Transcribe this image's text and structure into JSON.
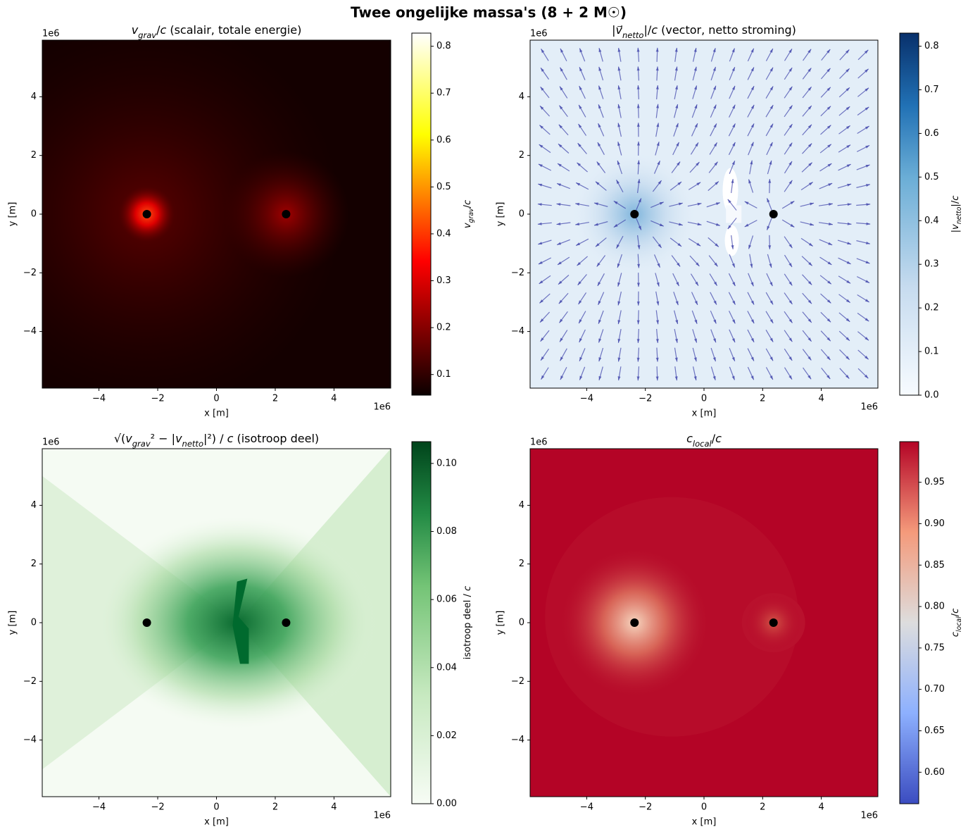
{
  "title": "Twee ongelijke massa's (8 + 2 M☉)",
  "chart_data": [
    {
      "type": "heatmap",
      "colormap": "hot",
      "title": [
        {
          "t": "v",
          "s": "i"
        },
        {
          "t": "grav",
          "s": "sub"
        },
        {
          "t": "/"
        },
        {
          "t": "c",
          "s": "i"
        },
        {
          "t": " (scalair, totale energie)"
        }
      ],
      "xlabel": "x [m]",
      "ylabel": "y [m]",
      "x_offset": "1e6",
      "y_offset": "1e6",
      "xlim": [
        -5.93,
        5.93
      ],
      "ylim": [
        -5.93,
        5.93
      ],
      "xticks": [
        {
          "value": -4,
          "label": "−4"
        },
        {
          "value": -2,
          "label": "−2"
        },
        0,
        2,
        4
      ],
      "yticks": [
        {
          "value": -4,
          "label": "−4"
        },
        {
          "value": -2,
          "label": "−2"
        },
        0,
        2,
        4
      ],
      "points": {
        "x": [
          -2.37,
          2.37
        ],
        "y": [
          0,
          0
        ]
      },
      "colorbar": {
        "label": [
          {
            "t": "v",
            "s": "i"
          },
          {
            "t": "grav",
            "s": "sub"
          },
          {
            "t": "/"
          },
          {
            "t": "c",
            "s": "i"
          }
        ],
        "lim": [
          0.056,
          0.828
        ],
        "ticks": [
          0.1,
          0.2,
          0.3,
          0.4,
          0.5,
          0.6,
          0.7,
          0.8
        ]
      }
    },
    {
      "type": "quiver",
      "colormap": "blues",
      "title": [
        {
          "t": "|"
        },
        {
          "t": "v⃗",
          "s": "i"
        },
        {
          "t": "netto",
          "s": "sub"
        },
        {
          "t": "|/"
        },
        {
          "t": "c",
          "s": "i"
        },
        {
          "t": " (vector, netto stroming)"
        }
      ],
      "xlabel": "x [m]",
      "ylabel": "y [m]",
      "x_offset": "1e6",
      "y_offset": "1e6",
      "xlim": [
        -5.93,
        5.93
      ],
      "ylim": [
        -5.93,
        5.93
      ],
      "xticks": [
        {
          "value": -4,
          "label": "−4"
        },
        {
          "value": -2,
          "label": "−2"
        },
        0,
        2,
        4
      ],
      "yticks": [
        {
          "value": -4,
          "label": "−4"
        },
        {
          "value": -2,
          "label": "−2"
        },
        0,
        2,
        4
      ],
      "points": {
        "x": [
          -2.37,
          2.37
        ],
        "y": [
          0,
          0
        ]
      },
      "colorbar": {
        "label": [
          {
            "t": "|"
          },
          {
            "t": "v",
            "s": "i"
          },
          {
            "t": "netto",
            "s": "sub"
          },
          {
            "t": "|/"
          },
          {
            "t": "c",
            "s": "i"
          }
        ],
        "lim": [
          0,
          0.83
        ],
        "ticks": [
          {
            "value": 0,
            "label": "0.0"
          },
          0.1,
          0.2,
          0.3,
          0.4,
          0.5,
          0.6,
          0.7,
          0.8
        ]
      }
    },
    {
      "type": "heatmap",
      "colormap": "greens",
      "title": [
        {
          "t": "√("
        },
        {
          "t": "v",
          "s": "i"
        },
        {
          "t": "grav",
          "s": "sub"
        },
        {
          "t": "² − |"
        },
        {
          "t": "v",
          "s": "i"
        },
        {
          "t": "netto",
          "s": "sub"
        },
        {
          "t": "|²) / "
        },
        {
          "t": "c",
          "s": "i"
        },
        {
          "t": " (isotroop deel)"
        }
      ],
      "xlabel": "x [m]",
      "ylabel": "y [m]",
      "x_offset": "1e6",
      "y_offset": "1e6",
      "xlim": [
        -5.93,
        5.93
      ],
      "ylim": [
        -5.93,
        5.93
      ],
      "xticks": [
        {
          "value": -4,
          "label": "−4"
        },
        {
          "value": -2,
          "label": "−2"
        },
        0,
        2,
        4
      ],
      "yticks": [
        {
          "value": -4,
          "label": "−4"
        },
        {
          "value": -2,
          "label": "−2"
        },
        0,
        2,
        4
      ],
      "points": {
        "x": [
          -2.37,
          2.37
        ],
        "y": [
          0,
          0
        ]
      },
      "colorbar": {
        "label": [
          {
            "t": "isotroop deel / "
          },
          {
            "t": "c",
            "s": "i"
          }
        ],
        "lim": [
          0,
          0.1064
        ],
        "ticks": [
          {
            "value": 0,
            "label": "0.00"
          },
          0.02,
          0.04,
          0.06,
          0.08,
          {
            "value": 0.1,
            "label": "0.10"
          }
        ]
      }
    },
    {
      "type": "heatmap",
      "colormap": "coolwarm",
      "title": [
        {
          "t": "c",
          "s": "i"
        },
        {
          "t": "local",
          "s": "sub"
        },
        {
          "t": "/"
        },
        {
          "t": "c",
          "s": "i"
        }
      ],
      "xlabel": "x [m]",
      "ylabel": "y [m]",
      "x_offset": "1e6",
      "y_offset": "1e6",
      "xlim": [
        -5.93,
        5.93
      ],
      "ylim": [
        -5.93,
        5.93
      ],
      "xticks": [
        {
          "value": -4,
          "label": "−4"
        },
        {
          "value": -2,
          "label": "−2"
        },
        0,
        2,
        4
      ],
      "yticks": [
        {
          "value": -4,
          "label": "−4"
        },
        {
          "value": -2,
          "label": "−2"
        },
        0,
        2,
        4
      ],
      "points": {
        "x": [
          -2.37,
          2.37
        ],
        "y": [
          0,
          0
        ]
      },
      "colorbar": {
        "label": [
          {
            "t": "c",
            "s": "i"
          },
          {
            "t": "local",
            "s": "sub"
          },
          {
            "t": "/"
          },
          {
            "t": "c",
            "s": "i"
          }
        ],
        "lim": [
          0.562,
          0.999
        ],
        "ticks": [
          {
            "value": 0.6,
            "label": "0.60"
          },
          0.65,
          {
            "value": 0.7,
            "label": "0.70"
          },
          0.75,
          {
            "value": 0.8,
            "label": "0.80"
          },
          0.85,
          {
            "value": 0.9,
            "label": "0.90"
          },
          0.95
        ]
      }
    }
  ]
}
